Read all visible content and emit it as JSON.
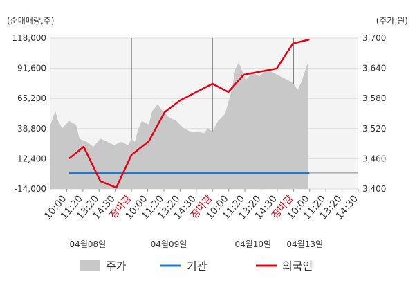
{
  "chart_data": {
    "type": "line",
    "y_label": "(순매매량,주)",
    "y2_label": "(주가,원)",
    "xlim": [
      0,
      19
    ],
    "xticks": [
      {
        "value": 1,
        "label": "10:00"
      },
      {
        "value": 2,
        "label": "11:20"
      },
      {
        "value": 3,
        "label": "13:20"
      },
      {
        "value": 4,
        "label": "14:30"
      },
      {
        "value": 5,
        "label": "장마감",
        "color": "#e60012"
      },
      {
        "value": 6,
        "label": "10:00"
      },
      {
        "value": 7,
        "label": "11:20"
      },
      {
        "value": 8,
        "label": "13:20"
      },
      {
        "value": 9,
        "label": "14:30"
      },
      {
        "value": 10,
        "label": "장마감",
        "color": "#e60012"
      },
      {
        "value": 11,
        "label": "10:00"
      },
      {
        "value": 12,
        "label": "11:20"
      },
      {
        "value": 13,
        "label": "13:20"
      },
      {
        "value": 14,
        "label": "14:30"
      },
      {
        "value": 15,
        "label": "장마감",
        "color": "#e60012"
      },
      {
        "value": 16,
        "label": "10:00"
      },
      {
        "value": 17,
        "label": "11:20"
      },
      {
        "value": 18,
        "label": "13:20"
      },
      {
        "value": 19,
        "label": "14:30"
      }
    ],
    "day_labels": [
      "04월08일",
      "04월09일",
      "04월10일",
      "04월13일"
    ],
    "day_boundaries": [
      5,
      10,
      15
    ],
    "ylim": [
      -14000,
      118000
    ],
    "yticks": [
      {
        "value": -14000,
        "label": "-14,000"
      },
      {
        "value": 12400,
        "label": "12,400"
      },
      {
        "value": 38800,
        "label": "38,800"
      },
      {
        "value": 65200,
        "label": "65,200"
      },
      {
        "value": 91600,
        "label": "91,600"
      },
      {
        "value": 118000,
        "label": "118,000"
      }
    ],
    "y2lim": [
      3400,
      3700
    ],
    "y2ticks": [
      {
        "value": 3400,
        "label": "3,400"
      },
      {
        "value": 3460,
        "label": "3,460"
      },
      {
        "value": 3520,
        "label": "3,520"
      },
      {
        "value": 3580,
        "label": "3,580"
      },
      {
        "value": 3640,
        "label": "3,640"
      },
      {
        "value": 3700,
        "label": "3,700"
      }
    ],
    "grid": true,
    "series": [
      {
        "name": "주가",
        "color": "#c8c8c8",
        "kind": "area",
        "axis": "y2",
        "x": [
          0,
          0.3,
          0.47,
          0.73,
          1.15,
          1.58,
          1.79,
          2.22,
          2.65,
          3.08,
          3.5,
          3.93,
          4.36,
          4.79,
          5,
          5.21,
          5.43,
          5.64,
          6.07,
          6.28,
          6.62,
          6.92,
          7.35,
          7.78,
          8.21,
          8.63,
          9.06,
          9.49,
          9.7,
          10,
          10.34,
          10.77,
          11.2,
          11.41,
          11.62,
          12.05,
          12.48,
          12.91,
          13.33,
          13.76,
          14.19,
          14.62,
          14.96,
          15.26,
          15.47,
          15.68,
          15.9
        ],
        "values": [
          3528,
          3555,
          3535,
          3521,
          3535,
          3528,
          3500,
          3494,
          3484,
          3500,
          3494,
          3487,
          3494,
          3487,
          3500,
          3494,
          3521,
          3535,
          3528,
          3555,
          3569,
          3555,
          3542,
          3535,
          3521,
          3514,
          3514,
          3511,
          3521,
          3514,
          3535,
          3549,
          3597,
          3638,
          3652,
          3617,
          3631,
          3624,
          3638,
          3631,
          3624,
          3617,
          3611,
          3597,
          3611,
          3631,
          3652
        ]
      },
      {
        "name": "기관",
        "color": "#1a7bd0",
        "kind": "line",
        "axis": "y",
        "x": [
          1.15,
          15.98
        ],
        "values": [
          0,
          0
        ]
      },
      {
        "name": "외국인",
        "color": "#e60012",
        "kind": "line",
        "axis": "y",
        "x": [
          1.15,
          2.05,
          3.08,
          4.06,
          5,
          6.07,
          7.05,
          8.0,
          10,
          10.98,
          11.92,
          13.97,
          14.96,
          15.98
        ],
        "values": [
          12600,
          22900,
          -7300,
          -12800,
          15700,
          27800,
          53200,
          63500,
          78000,
          70800,
          85900,
          91400,
          113200,
          116800
        ]
      }
    ]
  }
}
